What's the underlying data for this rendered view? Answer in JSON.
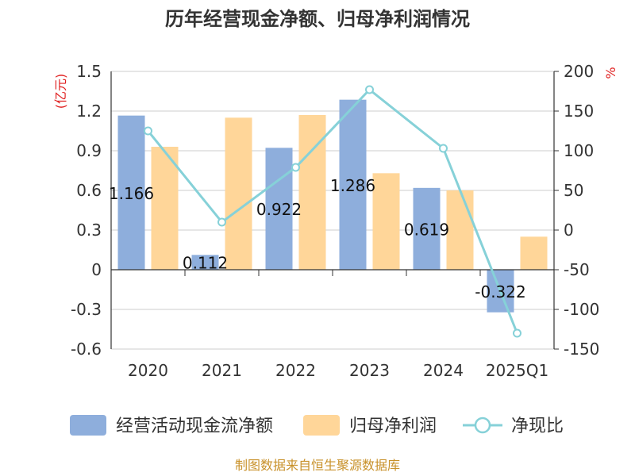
{
  "chart_data": {
    "type": "bar",
    "title": "历年经营现金净额、归母净利润情况",
    "left_unit": "(亿元)",
    "right_unit": "%",
    "categories": [
      "2020",
      "2021",
      "2022",
      "2023",
      "2024",
      "2025Q1"
    ],
    "series": [
      {
        "name": "经营活动现金流净额",
        "kind": "bar",
        "axis": "left",
        "color": "#8eaedc",
        "values": [
          1.166,
          0.112,
          0.922,
          1.286,
          0.619,
          -0.322
        ],
        "labels": [
          "1.166",
          "0.112",
          "0.922",
          "1.286",
          "0.619",
          "-0.322"
        ]
      },
      {
        "name": "归母净利润",
        "kind": "bar",
        "axis": "left",
        "color": "#ffd699",
        "values": [
          0.93,
          1.15,
          1.17,
          0.73,
          0.6,
          0.25
        ]
      },
      {
        "name": "净现比",
        "kind": "line",
        "axis": "right",
        "color": "#86d1d8",
        "values": [
          125,
          10,
          79,
          177,
          103,
          -130
        ]
      }
    ],
    "left_axis": {
      "min": -0.6,
      "max": 1.5,
      "ticks": [
        "1.5",
        "1.2",
        "0.9",
        "0.6",
        "0.3",
        "0",
        "-0.3",
        "-0.6"
      ]
    },
    "right_axis": {
      "min": -150,
      "max": 200,
      "ticks": [
        "200",
        "150",
        "100",
        "50",
        "0",
        "-50",
        "-100",
        "-150"
      ]
    },
    "grid": true,
    "legend_position": "bottom"
  },
  "source": "制图数据来自恒生聚源数据库"
}
